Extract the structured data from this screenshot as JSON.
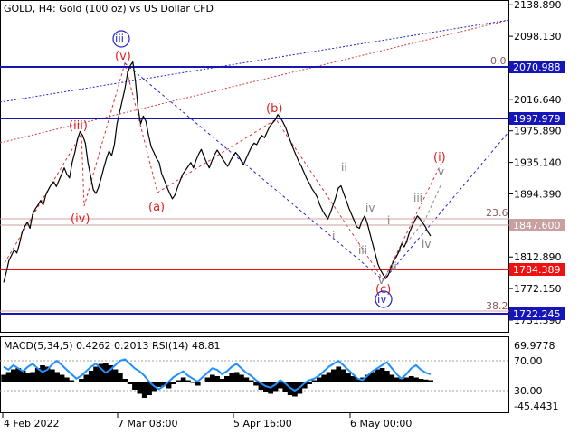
{
  "header": {
    "title": "GOLD, H4:  Gold (100 oz) vs US Dollar CFD"
  },
  "chart_data": {
    "type": "line",
    "symbol": "GOLD",
    "timeframe": "H4",
    "price_axis": {
      "ticks": [
        "2138.890",
        "2098.130",
        "2057.390",
        "2016.640",
        "1975.890",
        "1935.140",
        "1894.390",
        "1853.650",
        "1812.890",
        "1772.150",
        "1731.390"
      ],
      "range": [
        1715,
        2145
      ]
    },
    "time_axis": {
      "labels": [
        "4 Feb 2022",
        "7 Mar 08:00",
        "5 Apr 16:00",
        "6 May 00:00"
      ]
    },
    "price_series": [
      1780,
      1793,
      1808,
      1815,
      1822,
      1818,
      1830,
      1845,
      1852,
      1858,
      1850,
      1868,
      1875,
      1880,
      1886,
      1880,
      1893,
      1900,
      1906,
      1910,
      1904,
      1912,
      1920,
      1928,
      1920,
      1915,
      1935,
      1948,
      1965,
      1975,
      1970,
      1960,
      1935,
      1918,
      1900,
      1895,
      1903,
      1915,
      1928,
      1940,
      1950,
      1944,
      1958,
      1985,
      2000,
      2015,
      2030,
      2050,
      2060,
      2065,
      2040,
      2005,
      1985,
      1995,
      1988,
      1970,
      1955,
      1948,
      1940,
      1935,
      1920,
      1912,
      1903,
      1895,
      1888,
      1893,
      1903,
      1912,
      1920,
      1925,
      1930,
      1935,
      1928,
      1938,
      1946,
      1952,
      1943,
      1935,
      1928,
      1937,
      1945,
      1951,
      1946,
      1940,
      1935,
      1930,
      1937,
      1943,
      1948,
      1944,
      1938,
      1932,
      1940,
      1948,
      1955,
      1960,
      1958,
      1965,
      1970,
      1967,
      1975,
      1982,
      1986,
      1990,
      1997,
      1993,
      1987,
      1980,
      1970,
      1961,
      1952,
      1944,
      1936,
      1930,
      1922,
      1914,
      1908,
      1901,
      1896,
      1890,
      1880,
      1873,
      1867,
      1862,
      1870,
      1880,
      1890,
      1902,
      1905,
      1895,
      1886,
      1876,
      1868,
      1860,
      1852,
      1850,
      1860,
      1866,
      1856,
      1843,
      1830,
      1817,
      1804,
      1796,
      1790,
      1785,
      1790,
      1800,
      1808,
      1813,
      1820,
      1830,
      1826,
      1834,
      1845,
      1853,
      1860,
      1866,
      1862,
      1857,
      1852,
      1845,
      1840
    ],
    "horizontal_levels": [
      {
        "label": "2070.988",
        "color": "#1616b8"
      },
      {
        "label": "1997.979",
        "color": "#1616b8"
      },
      {
        "label": "1847.600",
        "color": "#c8a0a0"
      },
      {
        "label": "1784.389",
        "color": "#ee1111"
      },
      {
        "label": "1722.245",
        "color": "#1616b8"
      }
    ],
    "fib_labels": [
      "0.0",
      "23.6",
      "38.2"
    ],
    "wave_labels": {
      "red": [
        "(iii)",
        "(iv)",
        "(v)",
        "(a)",
        "(b)",
        "(c)",
        "(i)"
      ],
      "blue": [
        "iii",
        "iv"
      ],
      "gray": [
        "i",
        "ii",
        "iii",
        "iv",
        "v",
        "i",
        "ii",
        "iii",
        "iv",
        "v"
      ]
    },
    "indicator": {
      "label": "MACD(5,34,5)  0.4262  0.2013 RSI(14) 48.81",
      "axis_ticks": [
        "69.9778",
        "70.00",
        "30.00",
        "-45.4431"
      ],
      "rsi_series": [
        62,
        58,
        64,
        60,
        56,
        62,
        66,
        60,
        55,
        58,
        65,
        70,
        64,
        58,
        52,
        46,
        50,
        56,
        62,
        66,
        60,
        54,
        58,
        64,
        70,
        72,
        66,
        60,
        56,
        50,
        42,
        36,
        32,
        36,
        42,
        48,
        52,
        56,
        50,
        46,
        42,
        48,
        54,
        60,
        58,
        52,
        56,
        62,
        66,
        60,
        54,
        50,
        44,
        40,
        36,
        34,
        38,
        44,
        40,
        34,
        30,
        34,
        40,
        44,
        46,
        50,
        56,
        62,
        66,
        70,
        64,
        58,
        52,
        46,
        44,
        50,
        56,
        60,
        64,
        68,
        60,
        52,
        46,
        52,
        60,
        64,
        58,
        54,
        52
      ],
      "macd_series": [
        10,
        14,
        18,
        20,
        16,
        12,
        14,
        20,
        24,
        22,
        18,
        14,
        10,
        6,
        2,
        0,
        4,
        10,
        16,
        22,
        26,
        28,
        24,
        18,
        12,
        4,
        -4,
        -12,
        -18,
        -24,
        -20,
        -14,
        -8,
        -6,
        -10,
        -4,
        2,
        6,
        2,
        -2,
        -6,
        0,
        6,
        10,
        8,
        4,
        8,
        12,
        14,
        10,
        6,
        2,
        -6,
        -12,
        -16,
        -18,
        -14,
        -10,
        -16,
        -20,
        -22,
        -18,
        -10,
        -4,
        2,
        6,
        10,
        14,
        18,
        22,
        18,
        12,
        8,
        4,
        6,
        10,
        14,
        18,
        20,
        16,
        10,
        6,
        4,
        6,
        8,
        6,
        4,
        3,
        2
      ]
    }
  }
}
